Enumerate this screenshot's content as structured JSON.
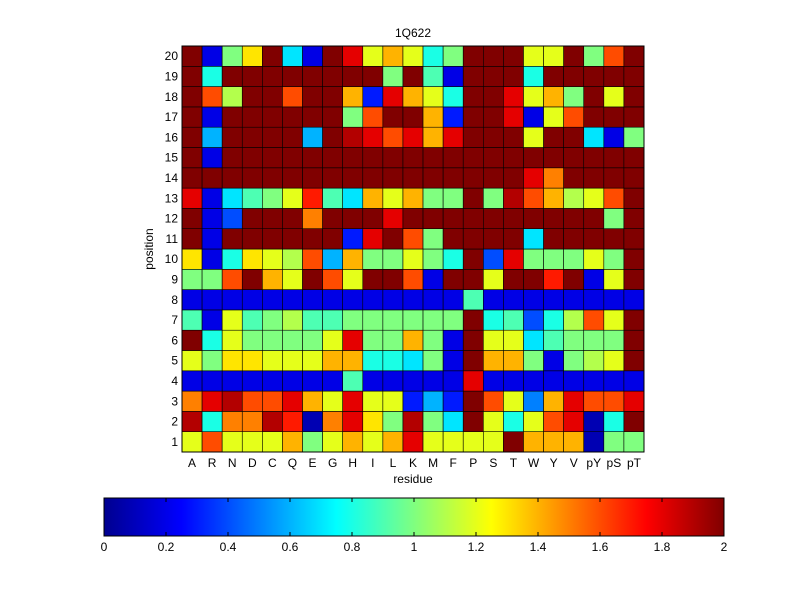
{
  "chart_data": {
    "type": "heatmap",
    "title": "1Q622",
    "xlabel": "residue",
    "ylabel": "position",
    "x_categories": [
      "A",
      "R",
      "N",
      "D",
      "C",
      "Q",
      "E",
      "G",
      "H",
      "I",
      "L",
      "K",
      "M",
      "F",
      "P",
      "S",
      "T",
      "W",
      "Y",
      "V",
      "pY",
      "pS",
      "pT"
    ],
    "y_categories": [
      "1",
      "2",
      "3",
      "4",
      "5",
      "6",
      "7",
      "8",
      "9",
      "10",
      "11",
      "12",
      "13",
      "14",
      "15",
      "16",
      "17",
      "18",
      "19",
      "20"
    ],
    "colorscale": "jet",
    "clim": [
      0,
      2
    ],
    "colorbar": {
      "placement": "bottom",
      "ticks": [
        0,
        0.2,
        0.4,
        0.6,
        0.8,
        1,
        1.2,
        1.4,
        1.6,
        1.8,
        2
      ],
      "tick_labels": [
        "0",
        "0.2",
        "0.4",
        "0.6",
        "0.8",
        "1",
        "1.2",
        "1.4",
        "1.6",
        "1.8",
        "2"
      ]
    },
    "values": [
      [
        1.2,
        1.6,
        1.2,
        1.2,
        1.2,
        1.4,
        1.0,
        1.2,
        1.4,
        1.2,
        1.4,
        1.8,
        1.2,
        1.2,
        1.2,
        1.2,
        2.0,
        1.4,
        1.4,
        1.4,
        0.1,
        1.0,
        1.0
      ],
      [
        1.9,
        0.8,
        1.5,
        1.5,
        1.9,
        1.7,
        0.1,
        1.5,
        1.8,
        1.3,
        1.0,
        1.9,
        1.0,
        0.7,
        2.0,
        1.2,
        0.8,
        1.2,
        1.6,
        1.8,
        0.1,
        0.8,
        2.0
      ],
      [
        1.5,
        1.8,
        1.9,
        1.6,
        1.6,
        1.8,
        1.4,
        1.2,
        1.8,
        1.2,
        1.2,
        0.3,
        0.6,
        0.3,
        2.0,
        1.6,
        1.2,
        0.5,
        1.4,
        1.8,
        1.6,
        1.6,
        1.8
      ],
      [
        0.2,
        0.2,
        0.2,
        0.2,
        0.2,
        0.2,
        0.2,
        0.2,
        0.9,
        0.2,
        0.2,
        0.2,
        0.2,
        0.2,
        1.8,
        0.2,
        0.2,
        0.2,
        0.2,
        0.2,
        0.2,
        0.2,
        0.2
      ],
      [
        1.2,
        1.0,
        1.3,
        1.3,
        1.2,
        1.2,
        1.2,
        1.4,
        1.4,
        0.8,
        0.8,
        0.7,
        1.0,
        0.2,
        2.0,
        1.4,
        1.4,
        1.0,
        0.2,
        1.0,
        1.1,
        1.2,
        2.0
      ],
      [
        2.0,
        0.8,
        1.2,
        1.0,
        1.0,
        1.0,
        1.0,
        1.2,
        1.8,
        1.0,
        1.0,
        1.4,
        1.0,
        0.2,
        2.0,
        1.2,
        1.2,
        0.7,
        0.9,
        1.0,
        1.0,
        1.0,
        2.0
      ],
      [
        0.9,
        0.2,
        1.2,
        0.9,
        1.0,
        1.1,
        0.9,
        0.9,
        1.0,
        1.0,
        1.0,
        1.0,
        1.0,
        1.0,
        2.0,
        0.8,
        0.9,
        0.4,
        0.8,
        1.1,
        1.6,
        1.2,
        2.0
      ],
      [
        0.2,
        0.2,
        0.2,
        0.2,
        0.2,
        0.2,
        0.2,
        0.2,
        0.2,
        0.2,
        0.2,
        0.2,
        0.2,
        0.2,
        0.9,
        0.2,
        0.2,
        0.2,
        0.2,
        0.2,
        0.2,
        0.2,
        0.2
      ],
      [
        1.0,
        1.0,
        1.6,
        2.0,
        1.4,
        1.2,
        2.0,
        1.6,
        1.2,
        2.0,
        2.0,
        1.6,
        0.2,
        2.0,
        2.0,
        1.2,
        2.0,
        2.0,
        1.7,
        2.0,
        0.2,
        1.2,
        2.0
      ],
      [
        1.3,
        0.2,
        0.8,
        1.3,
        1.2,
        1.1,
        1.6,
        0.6,
        1.4,
        1.0,
        1.0,
        1.2,
        1.0,
        0.8,
        2.0,
        0.4,
        1.8,
        1.0,
        1.0,
        1.0,
        1.2,
        1.0,
        2.0
      ],
      [
        2.0,
        0.2,
        2.0,
        2.0,
        2.0,
        2.0,
        2.0,
        2.0,
        0.3,
        1.8,
        2.0,
        1.6,
        1.0,
        2.0,
        2.0,
        2.0,
        2.0,
        0.7,
        2.0,
        2.0,
        2.0,
        2.0,
        2.0
      ],
      [
        2.0,
        0.2,
        0.4,
        2.0,
        2.0,
        2.0,
        1.5,
        2.0,
        2.0,
        2.0,
        1.8,
        2.0,
        2.0,
        2.0,
        2.0,
        2.0,
        2.0,
        2.0,
        2.0,
        2.0,
        2.0,
        1.0,
        2.0
      ],
      [
        1.8,
        0.2,
        0.7,
        0.9,
        1.0,
        1.2,
        1.7,
        0.9,
        0.7,
        1.4,
        1.2,
        1.4,
        1.0,
        1.0,
        2.0,
        1.0,
        1.9,
        1.6,
        1.4,
        1.1,
        1.2,
        1.6,
        2.0
      ],
      [
        2.0,
        2.0,
        2.0,
        2.0,
        2.0,
        2.0,
        2.0,
        2.0,
        2.0,
        2.0,
        2.0,
        2.0,
        2.0,
        2.0,
        2.0,
        2.0,
        2.0,
        1.8,
        1.5,
        2.0,
        2.0,
        2.0,
        2.0
      ],
      [
        2.0,
        0.2,
        2.0,
        2.0,
        2.0,
        2.0,
        2.0,
        2.0,
        2.0,
        2.0,
        2.0,
        2.0,
        2.0,
        2.0,
        2.0,
        2.0,
        2.0,
        2.0,
        2.0,
        2.0,
        2.0,
        2.0,
        2.0
      ],
      [
        2.0,
        0.6,
        2.0,
        2.0,
        2.0,
        2.0,
        0.6,
        2.0,
        1.9,
        1.8,
        1.6,
        1.8,
        1.4,
        1.8,
        2.0,
        2.0,
        2.0,
        1.2,
        2.0,
        2.0,
        0.7,
        0.2,
        1.0
      ],
      [
        2.0,
        0.2,
        2.0,
        2.0,
        2.0,
        2.0,
        2.0,
        2.0,
        1.0,
        1.6,
        2.0,
        2.0,
        1.4,
        0.3,
        2.0,
        2.0,
        1.8,
        0.2,
        1.2,
        1.6,
        2.0,
        2.0,
        2.0
      ],
      [
        2.0,
        1.6,
        1.1,
        2.0,
        2.0,
        1.6,
        2.0,
        2.0,
        1.4,
        0.3,
        1.8,
        1.4,
        1.2,
        0.8,
        2.0,
        2.0,
        1.8,
        1.2,
        1.4,
        1.0,
        2.0,
        1.2,
        2.0
      ],
      [
        2.0,
        0.8,
        2.0,
        2.0,
        2.0,
        2.0,
        2.0,
        2.0,
        2.0,
        2.0,
        1.0,
        2.0,
        0.9,
        0.2,
        2.0,
        2.0,
        2.0,
        0.8,
        2.0,
        2.0,
        2.0,
        2.0,
        2.0
      ],
      [
        2.0,
        0.2,
        1.0,
        1.3,
        2.0,
        0.7,
        0.2,
        2.0,
        1.8,
        1.2,
        1.4,
        1.2,
        0.8,
        1.0,
        2.0,
        2.0,
        2.0,
        1.2,
        1.2,
        2.0,
        1.0,
        1.6,
        2.0
      ]
    ]
  }
}
